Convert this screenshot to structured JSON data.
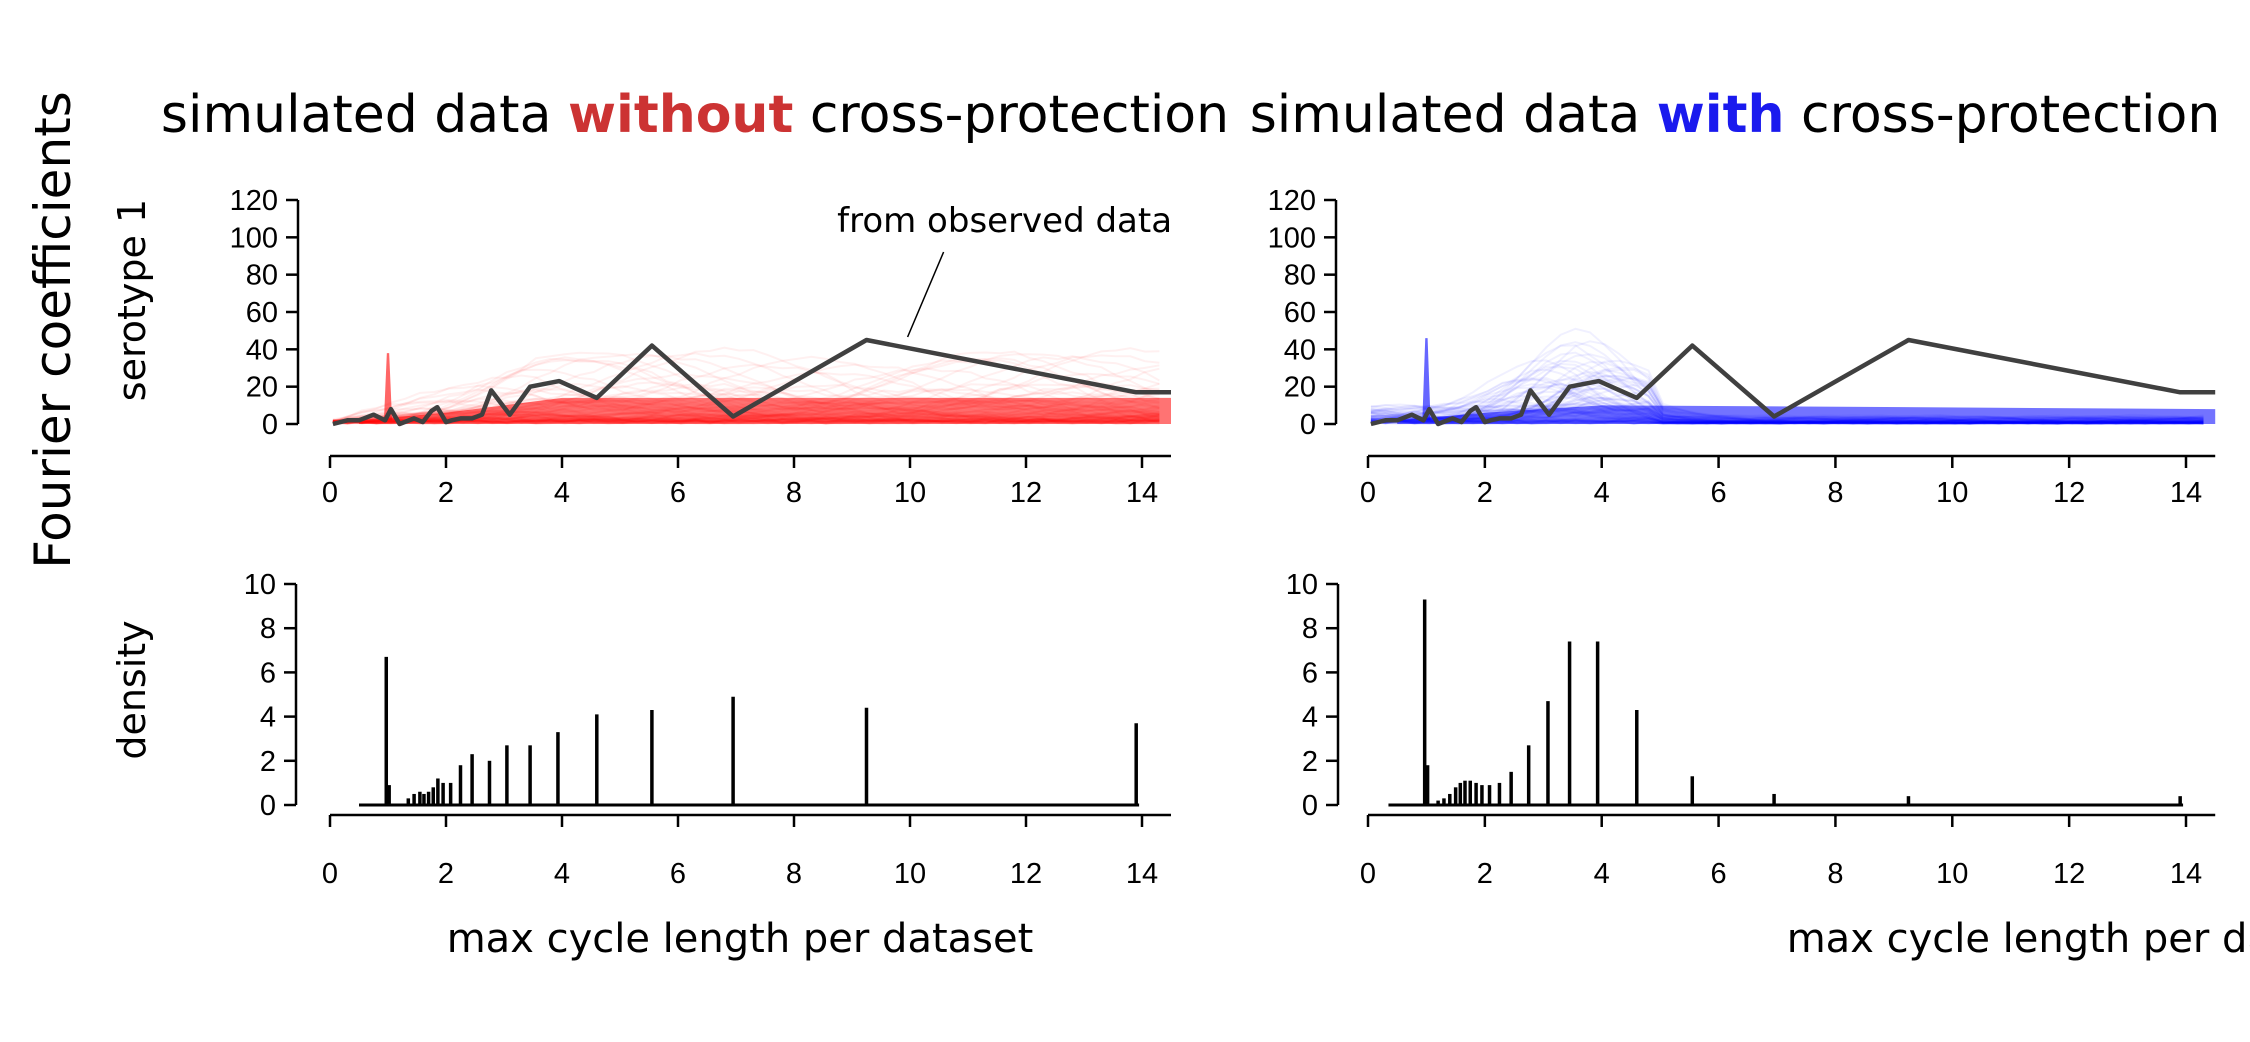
{
  "figure": {
    "ylabel_main": "Fourier coefficients",
    "xlabel": "max cycle length per dataset",
    "left_title": {
      "prefix": "simulated data ",
      "emph": "without",
      "suffix": " cross-protection",
      "emph_color": "#cc3333"
    },
    "right_title": {
      "prefix": "simulated data ",
      "emph": "with",
      "suffix": " cross-protection",
      "emph_color": "#1a1aee"
    },
    "top_ylabel": "serotype 1",
    "bottom_ylabel": "density",
    "annotation": "from observed data"
  },
  "chart_data": [
    {
      "id": "left-top",
      "type": "line",
      "ylabel": "serotype 1",
      "xlim": [
        0,
        14.5
      ],
      "ylim": [
        0,
        120
      ],
      "xticks": [
        0,
        2,
        4,
        6,
        8,
        10,
        12,
        14
      ],
      "yticks": [
        0,
        20,
        40,
        60,
        80,
        100,
        120
      ],
      "ensemble_color": "#ff0000",
      "ensemble_series": "simulated (many replicates, semi-transparent)",
      "observed": {
        "name": "from observed data",
        "color": "#404040",
        "x": [
          0.05,
          0.3,
          0.5,
          0.75,
          0.95,
          1.05,
          1.2,
          1.45,
          1.6,
          1.75,
          1.85,
          2.0,
          2.1,
          2.25,
          2.45,
          2.62,
          2.78,
          3.1,
          3.45,
          3.95,
          4.6,
          5.55,
          6.95,
          9.25,
          13.9,
          14.5
        ],
        "y": [
          0,
          2,
          2,
          5,
          2,
          8,
          0,
          3,
          1,
          7,
          9,
          1,
          2,
          3,
          3,
          5,
          18,
          5,
          20,
          23,
          14,
          42,
          4,
          45,
          17,
          17
        ]
      },
      "annotation": {
        "text": "from observed data",
        "x": 10.2,
        "y": 45
      }
    },
    {
      "id": "right-top",
      "type": "line",
      "ylabel": "serotype 1",
      "xlim": [
        0,
        14.5
      ],
      "ylim": [
        0,
        120
      ],
      "xticks": [
        0,
        2,
        4,
        6,
        8,
        10,
        12,
        14
      ],
      "yticks": [
        0,
        20,
        40,
        60,
        80,
        100,
        120
      ],
      "ensemble_color": "#0000ff",
      "ensemble_series": "simulated (many replicates, semi-transparent)",
      "observed": {
        "name": "from observed data",
        "color": "#404040",
        "x": [
          0.05,
          0.3,
          0.5,
          0.75,
          0.95,
          1.05,
          1.2,
          1.45,
          1.6,
          1.75,
          1.85,
          2.0,
          2.1,
          2.25,
          2.45,
          2.62,
          2.78,
          3.1,
          3.45,
          3.95,
          4.6,
          5.55,
          6.95,
          9.25,
          13.9,
          14.5
        ],
        "y": [
          0,
          2,
          2,
          5,
          2,
          8,
          0,
          3,
          1,
          7,
          9,
          1,
          2,
          3,
          3,
          5,
          18,
          5,
          20,
          23,
          14,
          42,
          4,
          45,
          17,
          17
        ]
      }
    },
    {
      "id": "left-bottom",
      "type": "bar",
      "ylabel": "density",
      "xlabel": "max cycle length per dataset",
      "xlim": [
        0,
        14.5
      ],
      "ylim": [
        0,
        10
      ],
      "xticks": [
        0,
        2,
        4,
        6,
        8,
        10,
        12,
        14
      ],
      "yticks": [
        0,
        2,
        4,
        6,
        8,
        10
      ],
      "baseline": [
        0.5,
        13.95
      ],
      "spikes": {
        "x": [
          0.97,
          1.02,
          1.35,
          1.45,
          1.55,
          1.62,
          1.7,
          1.78,
          1.86,
          1.95,
          2.08,
          2.25,
          2.45,
          2.75,
          3.05,
          3.45,
          3.93,
          4.6,
          5.55,
          6.95,
          9.25,
          13.9
        ],
        "y": [
          6.7,
          0.9,
          0.3,
          0.5,
          0.6,
          0.5,
          0.6,
          0.8,
          1.2,
          1.0,
          1.0,
          1.8,
          2.3,
          2.0,
          2.7,
          2.7,
          3.3,
          4.1,
          4.3,
          4.9,
          4.4,
          3.7
        ]
      }
    },
    {
      "id": "right-bottom",
      "type": "bar",
      "ylabel": "density",
      "xlabel": "max cycle length per dataset",
      "xlim": [
        0,
        14.5
      ],
      "ylim": [
        0,
        10
      ],
      "xticks": [
        0,
        2,
        4,
        6,
        8,
        10,
        12,
        14
      ],
      "yticks": [
        0,
        2,
        4,
        6,
        8,
        10
      ],
      "baseline": [
        0.35,
        13.95
      ],
      "spikes": {
        "x": [
          0.97,
          1.02,
          1.2,
          1.3,
          1.4,
          1.5,
          1.58,
          1.66,
          1.75,
          1.85,
          1.95,
          2.08,
          2.25,
          2.45,
          2.75,
          3.08,
          3.45,
          3.93,
          4.6,
          5.55,
          6.95,
          9.25,
          13.9
        ],
        "y": [
          9.3,
          1.8,
          0.2,
          0.3,
          0.5,
          0.8,
          1.0,
          1.1,
          1.1,
          1.0,
          0.9,
          0.9,
          1.0,
          1.5,
          2.7,
          4.7,
          7.4,
          7.4,
          4.3,
          1.3,
          0.5,
          0.4,
          0.4
        ]
      }
    }
  ]
}
